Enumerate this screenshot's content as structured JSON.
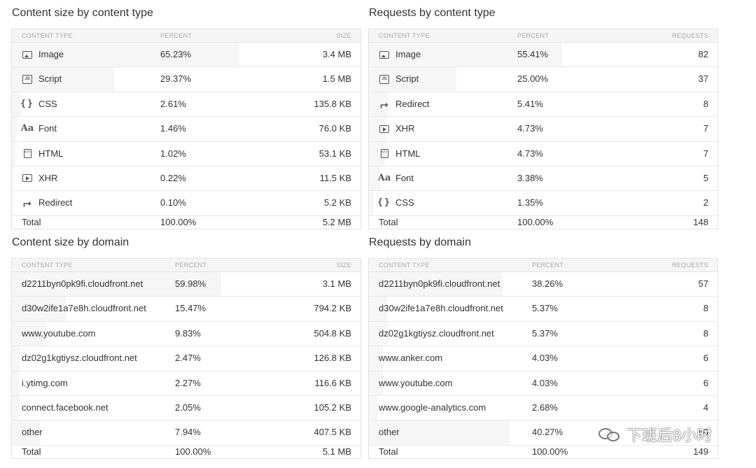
{
  "content_size_by_type": {
    "title": "Content size by content type",
    "headers": [
      "CONTENT TYPE",
      "PERCENT",
      "SIZE"
    ],
    "rows": [
      {
        "icon": "image-icon",
        "name": "Image",
        "percent": "65.23%",
        "value": "3.4 MB",
        "fraction": 0.6523
      },
      {
        "icon": "script-icon",
        "name": "Script",
        "percent": "29.37%",
        "value": "1.5 MB",
        "fraction": 0.2937
      },
      {
        "icon": "css-icon",
        "name": "CSS",
        "percent": "2.61%",
        "value": "135.8 KB",
        "fraction": 0.0261
      },
      {
        "icon": "font-icon",
        "name": "Font",
        "percent": "1.46%",
        "value": "76.0 KB",
        "fraction": 0.0146
      },
      {
        "icon": "html-icon",
        "name": "HTML",
        "percent": "1.02%",
        "value": "53.1 KB",
        "fraction": 0.0102
      },
      {
        "icon": "xhr-icon",
        "name": "XHR",
        "percent": "0.22%",
        "value": "11.5 KB",
        "fraction": 0.0022
      },
      {
        "icon": "redirect-icon",
        "name": "Redirect",
        "percent": "0.10%",
        "value": "5.2 KB",
        "fraction": 0.001
      }
    ],
    "total": {
      "name": "Total",
      "percent": "100.00%",
      "value": "5.2 MB"
    }
  },
  "requests_by_type": {
    "title": "Requests by content type",
    "headers": [
      "CONTENT TYPE",
      "PERCENT",
      "REQUESTS"
    ],
    "rows": [
      {
        "icon": "image-icon",
        "name": "Image",
        "percent": "55.41%",
        "value": "82",
        "fraction": 0.5541
      },
      {
        "icon": "script-icon",
        "name": "Script",
        "percent": "25.00%",
        "value": "37",
        "fraction": 0.25
      },
      {
        "icon": "redirect-icon",
        "name": "Redirect",
        "percent": "5.41%",
        "value": "8",
        "fraction": 0.0541
      },
      {
        "icon": "xhr-icon",
        "name": "XHR",
        "percent": "4.73%",
        "value": "7",
        "fraction": 0.0473
      },
      {
        "icon": "html-icon",
        "name": "HTML",
        "percent": "4.73%",
        "value": "7",
        "fraction": 0.0473
      },
      {
        "icon": "font-icon",
        "name": "Font",
        "percent": "3.38%",
        "value": "5",
        "fraction": 0.0338
      },
      {
        "icon": "css-icon",
        "name": "CSS",
        "percent": "1.35%",
        "value": "2",
        "fraction": 0.0135
      }
    ],
    "total": {
      "name": "Total",
      "percent": "100.00%",
      "value": "148"
    }
  },
  "content_size_by_domain": {
    "title": "Content size by domain",
    "headers": [
      "CONTENT TYPE",
      "PERCENT",
      "SIZE"
    ],
    "rows": [
      {
        "name": "d2211byn0pk9fi.cloudfront.net",
        "percent": "59.98%",
        "value": "3.1 MB",
        "fraction": 0.5998
      },
      {
        "name": "d30w2ife1a7e8h.cloudfront.net",
        "percent": "15.47%",
        "value": "794.2 KB",
        "fraction": 0.1547
      },
      {
        "name": "www.youtube.com",
        "percent": "9.83%",
        "value": "504.8 KB",
        "fraction": 0.0983
      },
      {
        "name": "dz02g1kgtiysz.cloudfront.net",
        "percent": "2.47%",
        "value": "126.8 KB",
        "fraction": 0.0247
      },
      {
        "name": "i.ytimg.com",
        "percent": "2.27%",
        "value": "116.6 KB",
        "fraction": 0.0227
      },
      {
        "name": "connect.facebook.net",
        "percent": "2.05%",
        "value": "105.2 KB",
        "fraction": 0.0205
      },
      {
        "name": "other",
        "percent": "7.94%",
        "value": "407.5 KB",
        "fraction": 0.0794
      }
    ],
    "total": {
      "name": "Total",
      "percent": "100.00%",
      "value": "5.1 MB"
    }
  },
  "requests_by_domain": {
    "title": "Requests by domain",
    "headers": [
      "CONTENT TYPE",
      "PERCENT",
      "REQUESTS"
    ],
    "rows": [
      {
        "name": "d2211byn0pk9fi.cloudfront.net",
        "percent": "38.26%",
        "value": "57",
        "fraction": 0.3826
      },
      {
        "name": "d30w2ife1a7e8h.cloudfront.net",
        "percent": "5.37%",
        "value": "8",
        "fraction": 0.0537
      },
      {
        "name": "dz02g1kgtiysz.cloudfront.net",
        "percent": "5.37%",
        "value": "8",
        "fraction": 0.0537
      },
      {
        "name": "www.anker.com",
        "percent": "4.03%",
        "value": "6",
        "fraction": 0.0403
      },
      {
        "name": "www.youtube.com",
        "percent": "4.03%",
        "value": "6",
        "fraction": 0.0403
      },
      {
        "name": "www.google-analytics.com",
        "percent": "2.68%",
        "value": "4",
        "fraction": 0.0268
      },
      {
        "name": "other",
        "percent": "40.27%",
        "value": "60",
        "fraction": 0.4027
      }
    ],
    "total": {
      "name": "Total",
      "percent": "100.00%",
      "value": "149"
    }
  },
  "watermark": {
    "text": "下班后8小时",
    "icon": "wechat-icon"
  }
}
